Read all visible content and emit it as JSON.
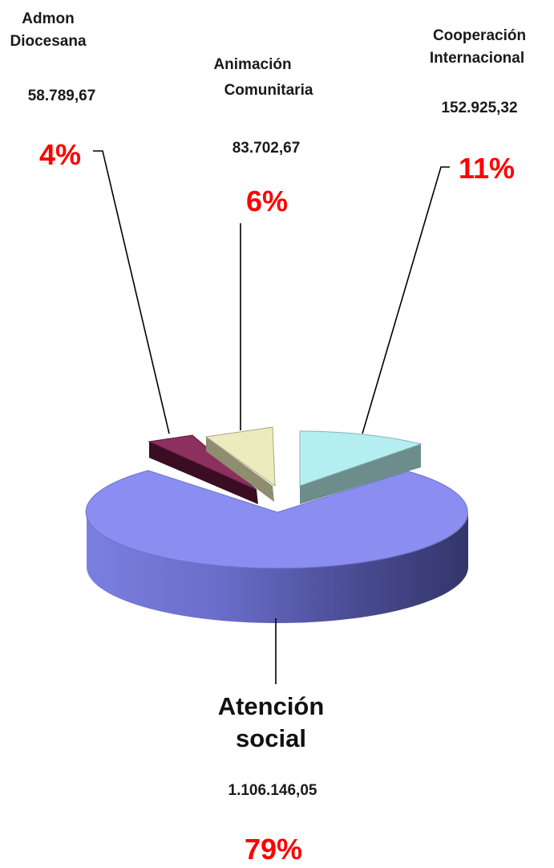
{
  "chart_data": {
    "type": "pie",
    "three_d": true,
    "exploded": true,
    "value_color": "#ff0000",
    "slices": [
      {
        "name": [
          "Atención",
          "social"
        ],
        "value": "1.106.146,05",
        "numeric": 1106146.05,
        "percent": "79%",
        "color": "#8b8ef0"
      },
      {
        "name": [
          "Admon",
          "Diocesana"
        ],
        "value": "58.789,67",
        "numeric": 58789.67,
        "percent": "4%",
        "color": "#8c3060"
      },
      {
        "name": [
          "Animación",
          "Comunitaria"
        ],
        "value": "83.702,67",
        "numeric": 83702.67,
        "percent": "6%",
        "color": "#ecebbd"
      },
      {
        "name": [
          "Cooperación",
          "Internacional"
        ],
        "value": "152.925,32",
        "numeric": 152925.32,
        "percent": "11%",
        "color": "#b5eef0"
      }
    ]
  }
}
